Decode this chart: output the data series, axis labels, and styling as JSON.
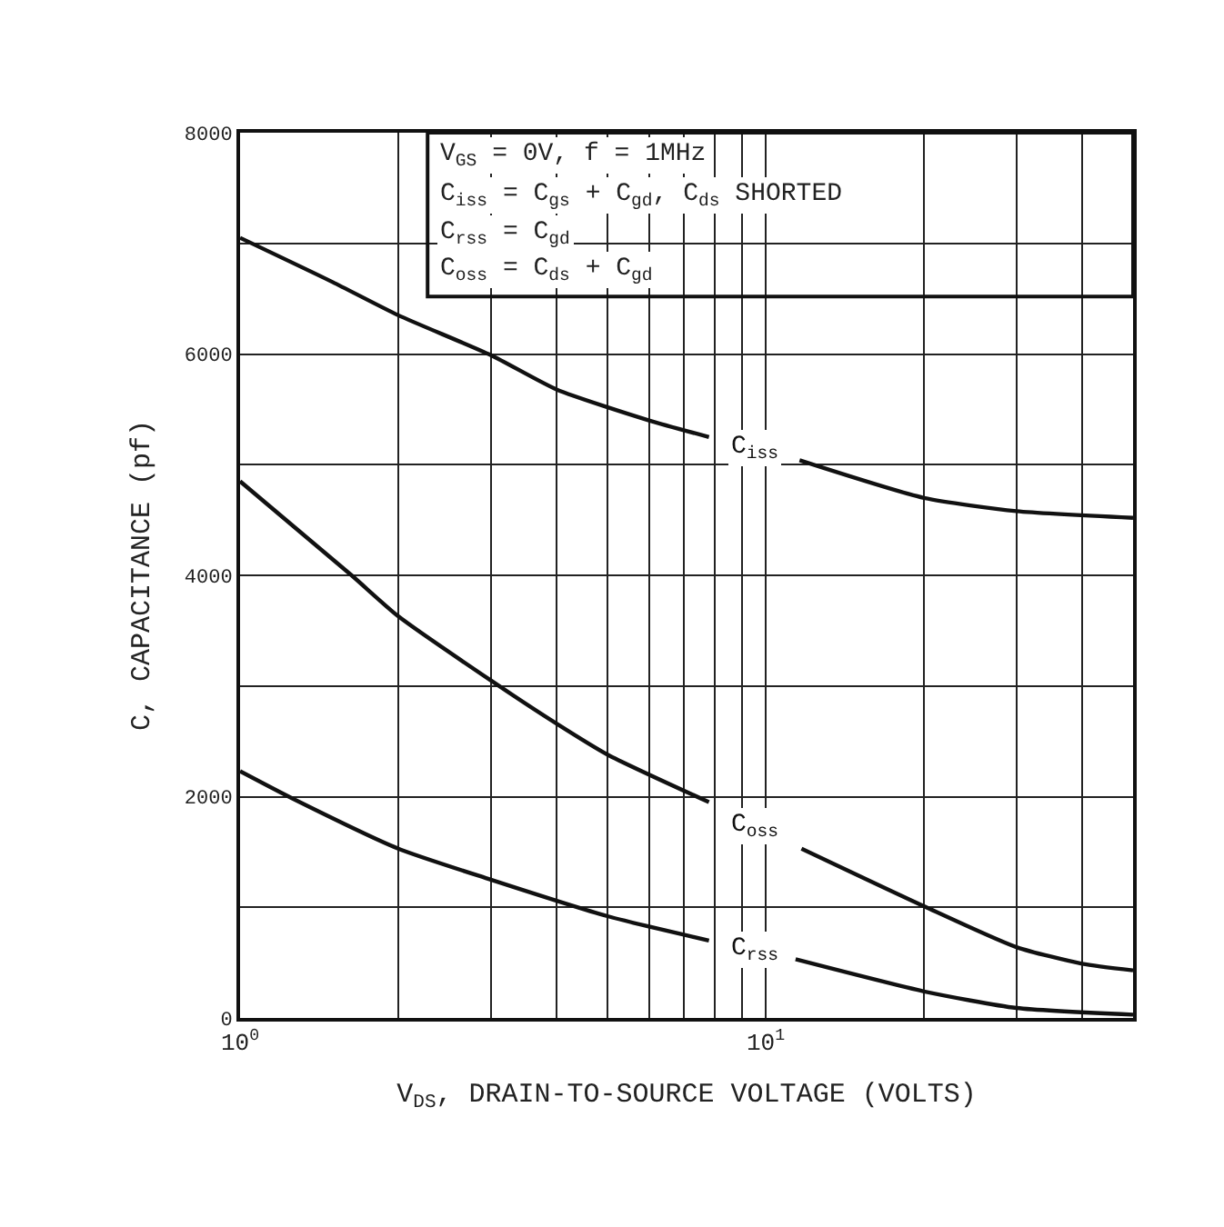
{
  "chart_data": {
    "type": "line",
    "xlabel": "V$_{DS}$, DRAIN-TO-SOURCE VOLTAGE (VOLTS)",
    "ylabel": "C, CAPACITANCE (pf)",
    "annotations": [
      "V$_{GS}$ = 0V, f = 1MHz",
      "C$_{iss}$ = C$_{gs}$ + C$_{gd}$, C$_{ds}$ SHORTED",
      "C$_{rss}$ = C$_{gd}$",
      "C$_{oss}$ = C$_{ds}$ + C$_{gd}$"
    ],
    "log": "x",
    "grid": true,
    "legend": false,
    "marker": "none",
    "line_style": "solid",
    "xlim": [
      1,
      50
    ],
    "xticks": [
      {
        "value": 1,
        "label": "10$^{0}$"
      },
      {
        "value": 2,
        "label": null
      },
      {
        "value": 3,
        "label": null
      },
      {
        "value": 4,
        "label": null
      },
      {
        "value": 5,
        "label": null
      },
      {
        "value": 6,
        "label": null
      },
      {
        "value": 7,
        "label": null
      },
      {
        "value": 8,
        "label": null
      },
      {
        "value": 9,
        "label": null
      },
      {
        "value": 10,
        "label": "10$^{1}$"
      },
      {
        "value": 20,
        "label": null
      },
      {
        "value": 30,
        "label": null
      },
      {
        "value": 40,
        "label": null
      }
    ],
    "ylim": [
      0,
      8000
    ],
    "yticks": [
      0,
      {
        "value": 1000,
        "label": null
      },
      2000,
      {
        "value": 3000,
        "label": null
      },
      4000,
      {
        "value": 5000,
        "label": null
      },
      6000,
      {
        "value": 7000,
        "label": null
      },
      8000
    ],
    "series": [
      {
        "name": "C$_{iss}$",
        "color": "#111111",
        "x": [
          1,
          1.5,
          2,
          3,
          4,
          6,
          7.8,
          9.5,
          11.6,
          20,
          30,
          50
        ],
        "values": [
          7050,
          6650,
          6350,
          5990,
          5680,
          5400,
          5250,
          null,
          5040,
          4700,
          4580,
          4520
        ]
      },
      {
        "name": "C$_{oss}$",
        "color": "#111111",
        "x": [
          1,
          1.63,
          2,
          3,
          4,
          5,
          7.8,
          9.5,
          11.7,
          20,
          30,
          40,
          50
        ],
        "values": [
          4850,
          4000,
          3630,
          3050,
          2660,
          2380,
          1950,
          null,
          1530,
          1010,
          640,
          490,
          430
        ]
      },
      {
        "name": "C$_{rss}$",
        "color": "#111111",
        "x": [
          1,
          1.25,
          2,
          3,
          5,
          7.8,
          9.5,
          11.4,
          20,
          30,
          50
        ],
        "values": [
          2230,
          1990,
          1530,
          1250,
          920,
          700,
          null,
          530,
          240,
          90,
          30
        ]
      }
    ]
  }
}
